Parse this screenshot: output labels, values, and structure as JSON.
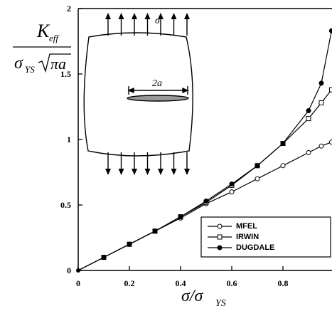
{
  "chart_data": {
    "type": "line",
    "ylabel": {
      "numerator": "K",
      "numerator_sub": "eff",
      "denominator": "σ",
      "denominator_sub": "YS",
      "radicand": "πa"
    },
    "xlabel": {
      "text": "σ/σ",
      "sub": "YS"
    },
    "inset": {
      "stress": "σ",
      "crack": "2a"
    },
    "x": [
      0,
      0.1,
      0.2,
      0.3,
      0.4,
      0.5,
      0.6,
      0.7,
      0.8,
      0.9,
      0.95,
      0.99
    ],
    "series": [
      {
        "name": "MFEL",
        "color": "#000000",
        "marker": "open-circle",
        "values": [
          0,
          0.1,
          0.2,
          0.3,
          0.4,
          0.51,
          0.6,
          0.7,
          0.8,
          0.9,
          0.95,
          0.98
        ]
      },
      {
        "name": "IRWIN",
        "color": "#000000",
        "marker": "open-square",
        "values": [
          0,
          0.1,
          0.2,
          0.3,
          0.41,
          0.52,
          0.65,
          0.8,
          0.97,
          1.16,
          1.28,
          1.38
        ]
      },
      {
        "name": "DUGDALE",
        "color": "#000000",
        "marker": "filled-circle",
        "values": [
          0,
          0.1,
          0.2,
          0.3,
          0.41,
          0.53,
          0.66,
          0.8,
          0.97,
          1.22,
          1.43,
          1.83
        ]
      }
    ],
    "xlim": [
      0,
      1
    ],
    "ylim": [
      0,
      2
    ],
    "xticks": [
      0,
      0.2,
      0.4,
      0.6,
      0.8
    ],
    "yticks": [
      0,
      0.5,
      1,
      1.5,
      2
    ],
    "legend": "lower right"
  }
}
